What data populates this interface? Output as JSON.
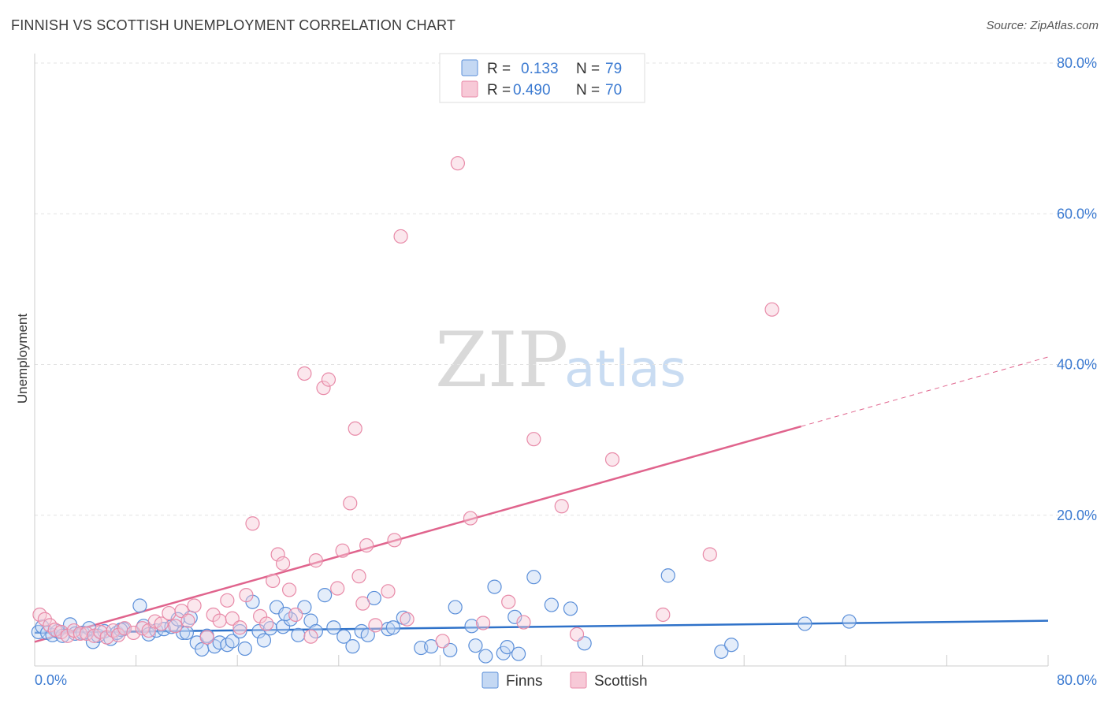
{
  "title": "FINNISH VS SCOTTISH UNEMPLOYMENT CORRELATION CHART",
  "source": "Source: ZipAtlas.com",
  "watermark": {
    "zip": "ZIP",
    "atlas": "atlas"
  },
  "colors": {
    "finns": "#5b8fd9",
    "finns_fill": "#c4d8f3",
    "finns_line": "#2f72c9",
    "scottish": "#e88aa8",
    "scottish_fill": "#f7c9d7",
    "scottish_line": "#e0648d",
    "tick": "#3b7ad1",
    "grid": "#e3e3e3"
  },
  "legend": {
    "finns": {
      "r_label": "R =",
      "r_value": "0.133",
      "n_label": "N =",
      "n_value": "79"
    },
    "scottish": {
      "r_label": "R =",
      "r_value": "0.490",
      "n_label": "N =",
      "n_value": "70"
    }
  },
  "bottom_legend": [
    "Finns",
    "Scottish"
  ],
  "chart_data": {
    "type": "scatter",
    "title": "FINNISH VS SCOTTISH UNEMPLOYMENT CORRELATION CHART",
    "xlabel": "",
    "ylabel": "Unemployment",
    "xlim": [
      0,
      80
    ],
    "ylim": [
      0,
      80
    ],
    "x_tick_labels": [
      "0.0%",
      "80.0%"
    ],
    "y_tick_labels": [
      "20.0%",
      "40.0%",
      "60.0%",
      "80.0%"
    ],
    "y_ticks": [
      20,
      40,
      60,
      80
    ],
    "grid": true,
    "legend_position": "top-center",
    "series": [
      {
        "name": "Finns",
        "trend": {
          "x": [
            0,
            80
          ],
          "y": [
            4.4,
            6.0
          ],
          "dashed_from": null
        },
        "points": [
          [
            0.3,
            4.5
          ],
          [
            0.6,
            5.2
          ],
          [
            1.0,
            4.4
          ],
          [
            1.4,
            4.1
          ],
          [
            1.8,
            4.6
          ],
          [
            2.2,
            4.0
          ],
          [
            2.8,
            5.5
          ],
          [
            3.2,
            4.3
          ],
          [
            3.8,
            4.4
          ],
          [
            4.3,
            5.0
          ],
          [
            4.6,
            3.2
          ],
          [
            5.0,
            4.0
          ],
          [
            5.5,
            4.6
          ],
          [
            6.0,
            3.6
          ],
          [
            6.5,
            4.4
          ],
          [
            7.0,
            4.9
          ],
          [
            8.3,
            8.0
          ],
          [
            8.6,
            5.3
          ],
          [
            9.0,
            4.2
          ],
          [
            9.6,
            4.7
          ],
          [
            10.2,
            4.9
          ],
          [
            10.8,
            5.2
          ],
          [
            11.3,
            6.2
          ],
          [
            11.7,
            4.4
          ],
          [
            12.3,
            6.4
          ],
          [
            12.8,
            3.1
          ],
          [
            13.2,
            2.2
          ],
          [
            13.6,
            4.0
          ],
          [
            14.2,
            2.6
          ],
          [
            14.6,
            3.1
          ],
          [
            15.2,
            2.8
          ],
          [
            15.6,
            3.3
          ],
          [
            16.2,
            4.6
          ],
          [
            16.6,
            2.3
          ],
          [
            17.2,
            8.5
          ],
          [
            17.7,
            4.6
          ],
          [
            18.1,
            3.4
          ],
          [
            18.6,
            5.0
          ],
          [
            19.1,
            7.8
          ],
          [
            19.6,
            5.2
          ],
          [
            20.2,
            6.2
          ],
          [
            20.8,
            4.1
          ],
          [
            21.3,
            7.8
          ],
          [
            21.8,
            6.0
          ],
          [
            22.2,
            4.6
          ],
          [
            22.9,
            9.4
          ],
          [
            23.6,
            5.1
          ],
          [
            24.4,
            3.9
          ],
          [
            25.1,
            2.6
          ],
          [
            25.8,
            4.6
          ],
          [
            26.8,
            9.0
          ],
          [
            27.9,
            4.9
          ],
          [
            28.3,
            5.1
          ],
          [
            29.1,
            6.4
          ],
          [
            30.5,
            2.4
          ],
          [
            31.3,
            2.6
          ],
          [
            32.8,
            2.1
          ],
          [
            33.2,
            7.8
          ],
          [
            34.5,
            5.3
          ],
          [
            34.8,
            2.7
          ],
          [
            35.6,
            1.3
          ],
          [
            37.0,
            1.7
          ],
          [
            37.3,
            2.5
          ],
          [
            37.9,
            6.5
          ],
          [
            38.2,
            1.6
          ],
          [
            39.4,
            11.8
          ],
          [
            40.8,
            8.1
          ],
          [
            42.3,
            7.6
          ],
          [
            43.4,
            3.0
          ],
          [
            50.0,
            12.0
          ],
          [
            54.2,
            1.9
          ],
          [
            55.0,
            2.8
          ],
          [
            60.8,
            5.6
          ],
          [
            64.3,
            5.9
          ],
          [
            36.3,
            10.5
          ],
          [
            19.8,
            6.9
          ],
          [
            26.3,
            4.1
          ],
          [
            12.0,
            4.4
          ],
          [
            6.8,
            4.8
          ]
        ]
      },
      {
        "name": "Scottish",
        "trend": {
          "x": [
            0,
            80
          ],
          "y": [
            3.2,
            41.0
          ],
          "dashed_from": 60.5
        },
        "points": [
          [
            0.4,
            6.8
          ],
          [
            0.8,
            6.2
          ],
          [
            1.2,
            5.4
          ],
          [
            1.6,
            4.8
          ],
          [
            2.1,
            4.5
          ],
          [
            2.6,
            4.0
          ],
          [
            3.1,
            4.7
          ],
          [
            3.6,
            4.3
          ],
          [
            4.1,
            4.3
          ],
          [
            4.7,
            4.0
          ],
          [
            5.2,
            4.5
          ],
          [
            5.7,
            3.8
          ],
          [
            6.2,
            4.7
          ],
          [
            6.6,
            4.1
          ],
          [
            7.1,
            5.0
          ],
          [
            7.8,
            4.4
          ],
          [
            8.5,
            5.0
          ],
          [
            9.0,
            4.7
          ],
          [
            9.5,
            5.9
          ],
          [
            10.0,
            5.6
          ],
          [
            10.6,
            7.0
          ],
          [
            11.1,
            5.3
          ],
          [
            11.6,
            7.3
          ],
          [
            12.1,
            6.0
          ],
          [
            12.6,
            8.0
          ],
          [
            13.6,
            3.8
          ],
          [
            14.1,
            6.8
          ],
          [
            14.6,
            6.0
          ],
          [
            15.2,
            8.7
          ],
          [
            15.6,
            6.3
          ],
          [
            16.2,
            5.1
          ],
          [
            16.7,
            9.4
          ],
          [
            17.2,
            18.9
          ],
          [
            17.8,
            6.6
          ],
          [
            18.3,
            5.6
          ],
          [
            18.8,
            11.3
          ],
          [
            19.2,
            14.8
          ],
          [
            19.6,
            13.6
          ],
          [
            20.1,
            10.1
          ],
          [
            20.6,
            6.8
          ],
          [
            21.3,
            38.8
          ],
          [
            21.8,
            3.9
          ],
          [
            22.2,
            14.0
          ],
          [
            22.8,
            36.9
          ],
          [
            23.2,
            38.0
          ],
          [
            23.9,
            10.3
          ],
          [
            24.3,
            15.3
          ],
          [
            24.9,
            21.6
          ],
          [
            25.3,
            31.5
          ],
          [
            25.6,
            11.9
          ],
          [
            26.2,
            16.0
          ],
          [
            26.9,
            5.4
          ],
          [
            27.9,
            9.9
          ],
          [
            28.4,
            16.7
          ],
          [
            28.9,
            57.0
          ],
          [
            29.4,
            6.2
          ],
          [
            32.2,
            3.3
          ],
          [
            33.4,
            66.7
          ],
          [
            34.4,
            19.6
          ],
          [
            35.4,
            5.7
          ],
          [
            37.4,
            8.5
          ],
          [
            38.6,
            5.8
          ],
          [
            39.4,
            30.1
          ],
          [
            41.6,
            21.2
          ],
          [
            42.8,
            4.2
          ],
          [
            45.6,
            27.4
          ],
          [
            49.6,
            6.8
          ],
          [
            53.3,
            14.8
          ],
          [
            58.2,
            47.3
          ],
          [
            25.9,
            8.3
          ]
        ]
      }
    ]
  }
}
